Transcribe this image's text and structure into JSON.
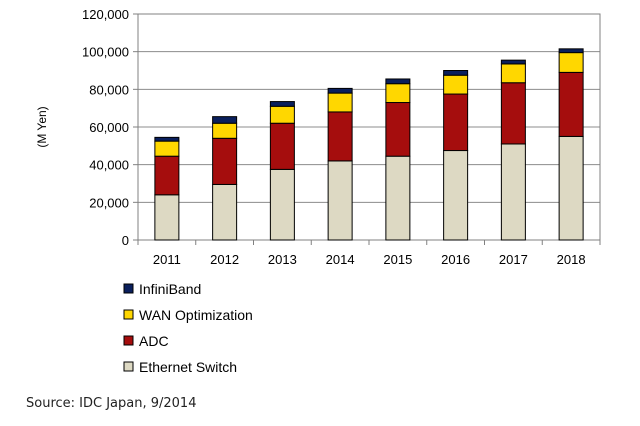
{
  "chart_data": {
    "type": "bar",
    "stacked": true,
    "categories": [
      "2011",
      "2012",
      "2013",
      "2014",
      "2015",
      "2016",
      "2017",
      "2018"
    ],
    "series": [
      {
        "name": "Ethernet Switch",
        "color": "#ddd9c3",
        "values": [
          24000,
          29500,
          37500,
          42000,
          44500,
          47500,
          51000,
          55000
        ]
      },
      {
        "name": "ADC",
        "color": "#a50d0d",
        "values": [
          20500,
          24500,
          24500,
          26000,
          28500,
          30000,
          32500,
          34000
        ]
      },
      {
        "name": "WAN Optimization",
        "color": "#ffd700",
        "values": [
          8000,
          8000,
          9000,
          10000,
          10000,
          10000,
          10000,
          10500
        ]
      },
      {
        "name": "InfiniBand",
        "color": "#0a1f5c",
        "values": [
          2000,
          3500,
          2500,
          2500,
          2500,
          2500,
          2000,
          2000
        ]
      }
    ],
    "ylabel": "(M Yen)",
    "ylim": [
      0,
      120000
    ],
    "yticks": [
      0,
      20000,
      40000,
      60000,
      80000,
      100000,
      120000
    ],
    "ytick_labels": [
      "0",
      "20,000",
      "40,000",
      "60,000",
      "80,000",
      "100,000",
      "120,000"
    ],
    "grid": true,
    "legend_position": "bottom-left",
    "legend_order": [
      "InfiniBand",
      "WAN Optimization",
      "ADC",
      "Ethernet Switch"
    ]
  },
  "source_text": "Source: IDC Japan, 9/2014"
}
